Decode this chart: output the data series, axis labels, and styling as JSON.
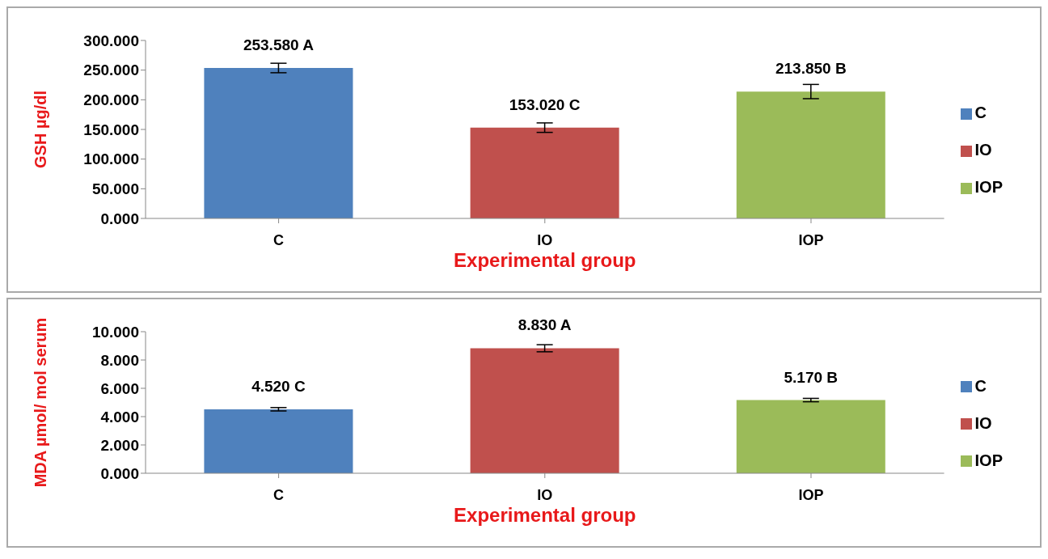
{
  "chart_data": [
    {
      "type": "bar",
      "xlabel": "Experimental group",
      "ylabel": "GSH µg/dl",
      "categories": [
        "C",
        "IO",
        "IOP"
      ],
      "stacked": true,
      "series": [
        {
          "name": "C",
          "color": "#4f81bd",
          "values": [
            253.58,
            null,
            null
          ],
          "errors": [
            8,
            null,
            null
          ],
          "value_labels": [
            "253.580 A",
            null,
            null
          ]
        },
        {
          "name": "IO",
          "color": "#c0504d",
          "values": [
            null,
            153.02,
            null
          ],
          "errors": [
            null,
            8,
            null
          ],
          "value_labels": [
            null,
            "153.020 C",
            null
          ]
        },
        {
          "name": "IOP",
          "color": "#9bbb59",
          "values": [
            null,
            null,
            213.85
          ],
          "errors": [
            null,
            null,
            12
          ],
          "value_labels": [
            null,
            null,
            "213.850 B"
          ]
        }
      ],
      "ylim": [
        0,
        300
      ],
      "yticks": [
        {
          "value": 0,
          "label": "0.000"
        },
        {
          "value": 50,
          "label": "50.000"
        },
        {
          "value": 100,
          "label": "100.000"
        },
        {
          "value": 150,
          "label": "150.000"
        },
        {
          "value": 200,
          "label": "200.000"
        },
        {
          "value": 250,
          "label": "250.000"
        },
        {
          "value": 300,
          "label": "300.000"
        }
      ],
      "legend": "right",
      "grid": false
    },
    {
      "type": "bar",
      "xlabel": "Experimental group",
      "ylabel": "MDA µmol/ mol serum",
      "categories": [
        "C",
        "IO",
        "IOP"
      ],
      "stacked": true,
      "series": [
        {
          "name": "C",
          "color": "#4f81bd",
          "values": [
            4.52,
            null,
            null
          ],
          "errors": [
            0.12,
            null,
            null
          ],
          "value_labels": [
            "4.520 C",
            null,
            null
          ]
        },
        {
          "name": "IO",
          "color": "#c0504d",
          "values": [
            null,
            8.83,
            null
          ],
          "errors": [
            null,
            0.25,
            null
          ],
          "value_labels": [
            null,
            "8.830 A",
            null
          ]
        },
        {
          "name": "IOP",
          "color": "#9bbb59",
          "values": [
            null,
            null,
            5.17
          ],
          "errors": [
            null,
            null,
            0.12
          ],
          "value_labels": [
            null,
            null,
            "5.170 B"
          ]
        }
      ],
      "ylim": [
        0,
        10
      ],
      "yticks": [
        {
          "value": 0,
          "label": "0.000"
        },
        {
          "value": 2,
          "label": "2.000"
        },
        {
          "value": 4,
          "label": "4.000"
        },
        {
          "value": 6,
          "label": "6.000"
        },
        {
          "value": 8,
          "label": "8.000"
        },
        {
          "value": 10,
          "label": "10.000"
        }
      ],
      "legend": "right",
      "grid": false
    }
  ]
}
